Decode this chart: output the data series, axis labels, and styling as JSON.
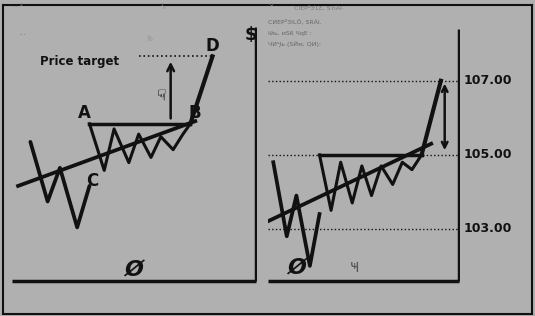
{
  "bg_color": "#b0b0b0",
  "panel_bg": "#d8d8d8",
  "line_color": "#111111",
  "price_levels": [
    107.0,
    105.0,
    103.0
  ],
  "price_labels": [
    "107.00",
    "105.00",
    "103.00"
  ],
  "label_A": "A",
  "label_B": "B",
  "label_C": "C",
  "label_D": "D",
  "price_target_label": "Price target",
  "dollar_label": "$"
}
